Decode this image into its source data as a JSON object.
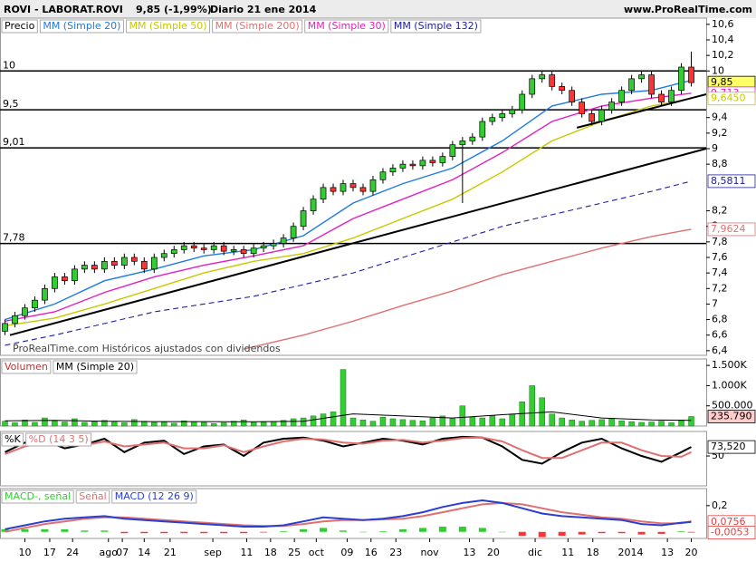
{
  "header": {
    "symbol": "ROVI - LABORAT.ROVI",
    "quote": "9,85 (-1,99%)",
    "period": "Diario  21 ene 2014",
    "site": "www.ProRealTime.com"
  },
  "chart_data": [
    {
      "type": "candlestick",
      "legend_title": "Precio",
      "watermark": "ProRealTime.com Históricos ajustados con dividendos",
      "xlim": [
        -0.5,
        70.5
      ],
      "ylim": [
        6.34,
        10.68
      ],
      "yticks": [
        {
          "value": 10.6,
          "label": "10,6"
        },
        {
          "value": 10.4,
          "label": "10,4"
        },
        {
          "value": 10.2,
          "label": "10,2"
        },
        10,
        {
          "value": 9.4,
          "label": "9,4"
        },
        {
          "value": 9.2,
          "label": "9,2"
        },
        9,
        {
          "value": 8.8,
          "label": "8,8"
        },
        {
          "value": 8.2,
          "label": "8,2"
        },
        8,
        {
          "value": 7.8,
          "label": "7,8"
        },
        {
          "value": 7.6,
          "label": "7,6"
        },
        {
          "value": 7.4,
          "label": "7,4"
        },
        {
          "value": 7.2,
          "label": "7,2"
        },
        7,
        {
          "value": 6.8,
          "label": "6,8"
        },
        {
          "value": 6.6,
          "label": "6,6"
        },
        {
          "value": 6.4,
          "label": "6,4"
        }
      ],
      "up_color": "#33cc33",
      "down_color": "#ff3333",
      "open": [
        6.65,
        6.75,
        6.85,
        6.95,
        7.05,
        7.2,
        7.35,
        7.3,
        7.45,
        7.5,
        7.45,
        7.55,
        7.5,
        7.6,
        7.55,
        7.45,
        7.6,
        7.65,
        7.7,
        7.75,
        7.72,
        7.7,
        7.75,
        7.68,
        7.7,
        7.65,
        7.72,
        7.75,
        7.78,
        7.85,
        8.0,
        8.2,
        8.35,
        8.5,
        8.45,
        8.55,
        8.5,
        8.45,
        8.6,
        8.7,
        8.75,
        8.8,
        8.78,
        8.85,
        8.82,
        8.9,
        9.05,
        9.1,
        9.15,
        9.35,
        9.4,
        9.45,
        9.5,
        9.7,
        9.9,
        9.95,
        9.8,
        9.75,
        9.6,
        9.45,
        9.35,
        9.5,
        9.6,
        9.75,
        9.9,
        9.95,
        9.7,
        9.6,
        9.75,
        10.05
      ],
      "high": [
        6.8,
        6.9,
        7.0,
        7.1,
        7.25,
        7.4,
        7.4,
        7.5,
        7.55,
        7.55,
        7.6,
        7.6,
        7.65,
        7.65,
        7.6,
        7.65,
        7.7,
        7.75,
        7.8,
        7.8,
        7.77,
        7.8,
        7.8,
        7.75,
        7.75,
        7.77,
        7.8,
        7.83,
        7.9,
        8.05,
        8.25,
        8.4,
        8.55,
        8.55,
        8.6,
        8.6,
        8.55,
        8.65,
        8.75,
        8.8,
        8.85,
        8.85,
        8.9,
        8.9,
        8.95,
        9.1,
        9.15,
        9.2,
        9.4,
        9.45,
        9.5,
        9.55,
        9.75,
        9.95,
        10.0,
        10.0,
        9.85,
        9.8,
        9.65,
        9.5,
        9.55,
        9.65,
        9.8,
        9.95,
        10.0,
        10.0,
        9.75,
        9.8,
        10.1,
        10.25
      ],
      "low": [
        6.6,
        6.7,
        6.8,
        6.9,
        7.0,
        7.15,
        7.25,
        7.25,
        7.4,
        7.4,
        7.4,
        7.45,
        7.45,
        7.5,
        7.4,
        7.4,
        7.55,
        7.6,
        7.65,
        7.67,
        7.65,
        7.65,
        7.63,
        7.63,
        7.6,
        7.6,
        7.67,
        7.7,
        7.73,
        7.8,
        7.95,
        8.15,
        8.3,
        8.4,
        8.4,
        8.45,
        8.4,
        8.4,
        8.55,
        8.65,
        8.7,
        8.73,
        8.73,
        8.77,
        8.77,
        8.85,
        8.3,
        9.05,
        9.1,
        9.3,
        9.35,
        9.4,
        9.45,
        9.65,
        9.85,
        9.75,
        9.7,
        9.55,
        9.4,
        9.3,
        9.3,
        9.45,
        9.55,
        9.7,
        9.85,
        9.65,
        9.55,
        9.55,
        9.7,
        9.8
      ],
      "close": [
        6.75,
        6.85,
        6.95,
        7.05,
        7.2,
        7.35,
        7.3,
        7.45,
        7.5,
        7.45,
        7.55,
        7.5,
        7.6,
        7.55,
        7.45,
        7.6,
        7.65,
        7.7,
        7.75,
        7.72,
        7.7,
        7.75,
        7.68,
        7.7,
        7.65,
        7.72,
        7.75,
        7.78,
        7.85,
        8.0,
        8.2,
        8.35,
        8.5,
        8.45,
        8.55,
        8.5,
        8.45,
        8.6,
        8.7,
        8.75,
        8.8,
        8.78,
        8.85,
        8.82,
        8.9,
        9.05,
        9.1,
        9.15,
        9.35,
        9.4,
        9.45,
        9.5,
        9.7,
        9.9,
        9.95,
        9.8,
        9.75,
        9.6,
        9.45,
        9.35,
        9.5,
        9.6,
        9.75,
        9.9,
        9.95,
        9.7,
        9.6,
        9.75,
        10.05,
        9.85
      ],
      "series": [
        {
          "name": "MM (Simple 20)",
          "color": "#1e7be0",
          "x": [
            0,
            5,
            10,
            15,
            20,
            25,
            30,
            35,
            40,
            45,
            50,
            55,
            60,
            65,
            69
          ],
          "values": [
            6.8,
            7.0,
            7.3,
            7.45,
            7.62,
            7.7,
            7.88,
            8.3,
            8.55,
            8.75,
            9.1,
            9.55,
            9.7,
            9.75,
            9.88
          ]
        },
        {
          "name": "MM (Simple 50)",
          "color": "#c8c800",
          "x": [
            0,
            5,
            10,
            15,
            20,
            25,
            30,
            35,
            40,
            45,
            50,
            55,
            60,
            65,
            69
          ],
          "values": [
            6.72,
            6.82,
            7.0,
            7.2,
            7.4,
            7.55,
            7.65,
            7.85,
            8.1,
            8.35,
            8.7,
            9.1,
            9.35,
            9.55,
            9.645
          ]
        },
        {
          "name": "MM (Simple 200)",
          "color": "#e07070",
          "x": [
            24,
            30,
            35,
            40,
            45,
            50,
            55,
            60,
            65,
            69
          ],
          "values": [
            6.42,
            6.6,
            6.78,
            6.98,
            7.17,
            7.38,
            7.55,
            7.72,
            7.87,
            7.9624
          ]
        },
        {
          "name": "MM (Simple 30)",
          "color": "#e020c0",
          "x": [
            0,
            5,
            10,
            15,
            20,
            25,
            30,
            35,
            40,
            45,
            50,
            55,
            60,
            65,
            69
          ],
          "values": [
            6.78,
            6.9,
            7.15,
            7.35,
            7.5,
            7.62,
            7.75,
            8.1,
            8.35,
            8.6,
            8.95,
            9.35,
            9.55,
            9.65,
            9.713
          ]
        },
        {
          "name": "MM (Simple 132)",
          "color": "#2020a0",
          "dash": true,
          "x": [
            0,
            5,
            10,
            15,
            20,
            25,
            30,
            35,
            40,
            45,
            50,
            55,
            60,
            65,
            69
          ],
          "values": [
            6.47,
            6.6,
            6.75,
            6.9,
            7.0,
            7.1,
            7.25,
            7.4,
            7.6,
            7.8,
            8.0,
            8.15,
            8.3,
            8.45,
            8.5811
          ]
        }
      ],
      "levels": [
        {
          "value": 10,
          "label": "10"
        },
        {
          "value": 9.5,
          "label": "9,5"
        },
        {
          "value": 9.01,
          "label": "9,01"
        },
        {
          "value": 7.78,
          "label": "7,78"
        }
      ],
      "trendlines": [
        {
          "x": [
            0.5,
            70.5
          ],
          "values": [
            6.6,
            9.0
          ]
        },
        {
          "x": [
            57.5,
            70.5
          ],
          "values": [
            9.27,
            9.7
          ]
        }
      ],
      "tags": [
        {
          "value": 9.85,
          "label": "9,85",
          "color": "#000000",
          "background": "#ffff66"
        },
        {
          "value": 9.713,
          "label": "9,713",
          "color": "#e020c0",
          "background": "#ffffff"
        },
        {
          "value": 9.645,
          "label": "9,6450",
          "color": "#c8c800",
          "background": "#ffffff"
        },
        {
          "value": 8.5811,
          "label": "8,5811",
          "color": "#2020a0",
          "background": "#ffffff"
        },
        {
          "value": 7.9624,
          "label": "7,9624",
          "color": "#e07070",
          "background": "#ffffff"
        }
      ]
    },
    {
      "type": "bar",
      "legend_title": "Volumen",
      "color": "#33cc33",
      "ylim": [
        0,
        1660000
      ],
      "yticks": [
        {
          "value": 1500000,
          "label": "1.500K"
        },
        {
          "value": 1000000,
          "label": "1.000K"
        },
        {
          "value": 500000,
          "label": "500.000"
        }
      ],
      "values": [
        120000,
        80000,
        150000,
        90000,
        200000,
        130000,
        100000,
        180000,
        90000,
        110000,
        140000,
        100000,
        80000,
        160000,
        120000,
        90000,
        100000,
        70000,
        130000,
        110000,
        90000,
        60000,
        80000,
        120000,
        150000,
        90000,
        100000,
        110000,
        140000,
        180000,
        200000,
        250000,
        300000,
        350000,
        1400000,
        200000,
        150000,
        120000,
        220000,
        180000,
        160000,
        140000,
        130000,
        200000,
        250000,
        180000,
        500000,
        230000,
        200000,
        250000,
        180000,
        300000,
        600000,
        1000000,
        700000,
        300000,
        200000,
        150000,
        120000,
        140000,
        160000,
        180000,
        130000,
        110000,
        90000,
        100000,
        120000,
        80000,
        150000,
        235790
      ],
      "series": [
        {
          "name": "MM (Simple 20)",
          "color": "#000000",
          "x": [
            0,
            5,
            10,
            15,
            20,
            25,
            30,
            35,
            40,
            45,
            50,
            55,
            60,
            65,
            69
          ],
          "values": [
            130000,
            140000,
            120000,
            110000,
            110000,
            105000,
            120000,
            300000,
            250000,
            200000,
            280000,
            350000,
            200000,
            150000,
            140000
          ]
        }
      ],
      "tags": [
        {
          "value": 235790,
          "label": "235.790",
          "color": "#000000",
          "background": "#ffcccc"
        }
      ]
    },
    {
      "type": "line",
      "ylim": [
        -28,
        114
      ],
      "yticks": [
        50
      ],
      "x": [
        0,
        2,
        4,
        6,
        8,
        10,
        12,
        14,
        16,
        18,
        20,
        22,
        24,
        26,
        28,
        30,
        32,
        34,
        36,
        38,
        40,
        42,
        44,
        46,
        48,
        50,
        52,
        54,
        56,
        58,
        60,
        62,
        64,
        66,
        68,
        69
      ],
      "series": [
        {
          "name": "%K",
          "color": "#000000",
          "values": [
            60,
            85,
            90,
            70,
            80,
            95,
            60,
            85,
            90,
            55,
            75,
            80,
            50,
            85,
            95,
            98,
            90,
            75,
            85,
            95,
            90,
            80,
            95,
            100,
            98,
            75,
            40,
            30,
            60,
            85,
            95,
            70,
            50,
            35,
            60,
            73.52
          ]
        },
        {
          "name": "%D (14 3 5)",
          "color": "#e07070",
          "values": [
            55,
            75,
            85,
            80,
            78,
            88,
            75,
            80,
            85,
            70,
            70,
            78,
            60,
            75,
            88,
            95,
            93,
            85,
            82,
            90,
            92,
            85,
            90,
            97,
            98,
            88,
            65,
            45,
            45,
            65,
            85,
            85,
            65,
            50,
            48,
            60
          ]
        }
      ],
      "tags": [
        {
          "value": 73.52,
          "label": "73,520",
          "color": "#000000",
          "background": "#ffffff"
        }
      ]
    },
    {
      "type": "line",
      "ylim": [
        -0.05,
        0.33
      ],
      "yticks": [
        {
          "value": 0.2,
          "label": "0,2"
        }
      ],
      "x": [
        0,
        2,
        4,
        6,
        8,
        10,
        12,
        14,
        16,
        18,
        20,
        22,
        24,
        26,
        28,
        30,
        32,
        34,
        36,
        38,
        40,
        42,
        44,
        46,
        48,
        50,
        52,
        54,
        56,
        58,
        60,
        62,
        64,
        66,
        68,
        69
      ],
      "series": [
        {
          "name": "MACD-, señal",
          "style": "bars",
          "color": "#33cc33",
          "negative_color": "#ff3333",
          "values": [
            0.02,
            0.02,
            0.02,
            0.02,
            0.01,
            0.01,
            -0.01,
            -0.01,
            -0.01,
            -0.01,
            -0.01,
            -0.01,
            -0.01,
            -0.005,
            0.005,
            0.02,
            0.03,
            0.01,
            0,
            0.005,
            0.02,
            0.03,
            0.04,
            0.04,
            0.03,
            0,
            -0.03,
            -0.04,
            -0.03,
            -0.02,
            -0.01,
            -0.01,
            -0.02,
            -0.015,
            0.005,
            -0.0053
          ]
        },
        {
          "name": "Señal",
          "color": "#e07070",
          "values": [
            0,
            0.03,
            0.06,
            0.08,
            0.1,
            0.11,
            0.11,
            0.1,
            0.09,
            0.08,
            0.07,
            0.06,
            0.05,
            0.045,
            0.045,
            0.06,
            0.08,
            0.09,
            0.09,
            0.095,
            0.1,
            0.12,
            0.15,
            0.18,
            0.21,
            0.22,
            0.21,
            0.18,
            0.15,
            0.13,
            0.11,
            0.1,
            0.08,
            0.065,
            0.065,
            0.0809
          ]
        },
        {
          "name": "MACD (12 26 9)",
          "color": "#2a3fd0",
          "values": [
            0.02,
            0.05,
            0.08,
            0.1,
            0.11,
            0.12,
            0.1,
            0.09,
            0.08,
            0.07,
            0.06,
            0.05,
            0.04,
            0.04,
            0.05,
            0.08,
            0.11,
            0.1,
            0.09,
            0.1,
            0.12,
            0.15,
            0.19,
            0.22,
            0.24,
            0.22,
            0.18,
            0.14,
            0.12,
            0.11,
            0.1,
            0.09,
            0.06,
            0.05,
            0.07,
            0.0756
          ]
        }
      ],
      "tags": [
        {
          "value": 0.0756,
          "label": "0,0756",
          "color": "#e04040",
          "background": "#ffffff"
        },
        {
          "value": -0.0053,
          "label": "-0,0053",
          "color": "#e04040",
          "background": "#ffffff"
        }
      ],
      "xticks": [
        {
          "value": 2,
          "label": "10"
        },
        {
          "value": 4.5,
          "label": "17"
        },
        {
          "value": 6.8,
          "label": "24"
        },
        {
          "value": 10.4,
          "label": "ago"
        },
        {
          "value": 11.8,
          "label": "07"
        },
        {
          "value": 14,
          "label": "14"
        },
        {
          "value": 16.6,
          "label": "21"
        },
        {
          "value": 20.9,
          "label": "sep"
        },
        {
          "value": 24.3,
          "label": "11"
        },
        {
          "value": 26.7,
          "label": "18"
        },
        {
          "value": 29.1,
          "label": "25"
        },
        {
          "value": 31.3,
          "label": "oct"
        },
        {
          "value": 34.4,
          "label": "09"
        },
        {
          "value": 36.8,
          "label": "16"
        },
        {
          "value": 39.3,
          "label": "23"
        },
        {
          "value": 42.7,
          "label": "nov"
        },
        {
          "value": 46.7,
          "label": "13"
        },
        {
          "value": 49.1,
          "label": "20"
        },
        {
          "value": 53.3,
          "label": "dic"
        },
        {
          "value": 56.6,
          "label": "11"
        },
        {
          "value": 59.1,
          "label": "18"
        },
        {
          "value": 62.9,
          "label": "2014"
        },
        {
          "value": 66.6,
          "label": "13"
        },
        {
          "value": 69,
          "label": "20"
        }
      ]
    }
  ]
}
